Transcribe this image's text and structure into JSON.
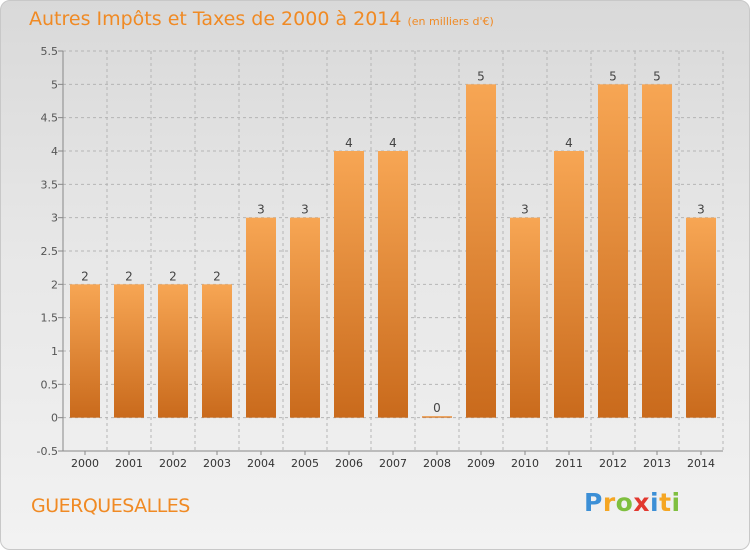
{
  "header": {
    "title": "Autres Impôts et Taxes de 2000 à 2014",
    "subtitle": "(en milliers d'€)"
  },
  "footer": {
    "commune": "GUERQUESALLES",
    "logo_letters": [
      "P",
      "r",
      "o",
      "x",
      "i",
      "t",
      "i"
    ],
    "logo_colors": [
      "#3c8fd6",
      "#f5a623",
      "#7fbf3f",
      "#e2382f",
      "#3c8fd6",
      "#f5a623",
      "#7fbf3f"
    ]
  },
  "colors": {
    "bar_top": "#f7a654",
    "bar_bottom": "#c96a1c",
    "accent": "#f08a24",
    "grid": "#b5b5b5",
    "axis_text": "#555555"
  },
  "chart_data": {
    "type": "bar",
    "categories": [
      "2000",
      "2001",
      "2002",
      "2003",
      "2004",
      "2005",
      "2006",
      "2007",
      "2008",
      "2009",
      "2010",
      "2011",
      "2012",
      "2013",
      "2014"
    ],
    "values": [
      2,
      2,
      2,
      2,
      3,
      3,
      4,
      4,
      0,
      5,
      3,
      4,
      5,
      5,
      3
    ],
    "data_labels": [
      "2",
      "2",
      "2",
      "2",
      "3",
      "3",
      "4",
      "4",
      "0",
      "5",
      "3",
      "4",
      "5",
      "5",
      "3"
    ],
    "yticks": [
      "-0.5",
      "0",
      "0.5",
      "1",
      "1.5",
      "2",
      "2.5",
      "3",
      "3.5",
      "4",
      "4.5",
      "5",
      "5.5"
    ],
    "ylim": [
      -0.5,
      5.5
    ],
    "grid": true
  }
}
